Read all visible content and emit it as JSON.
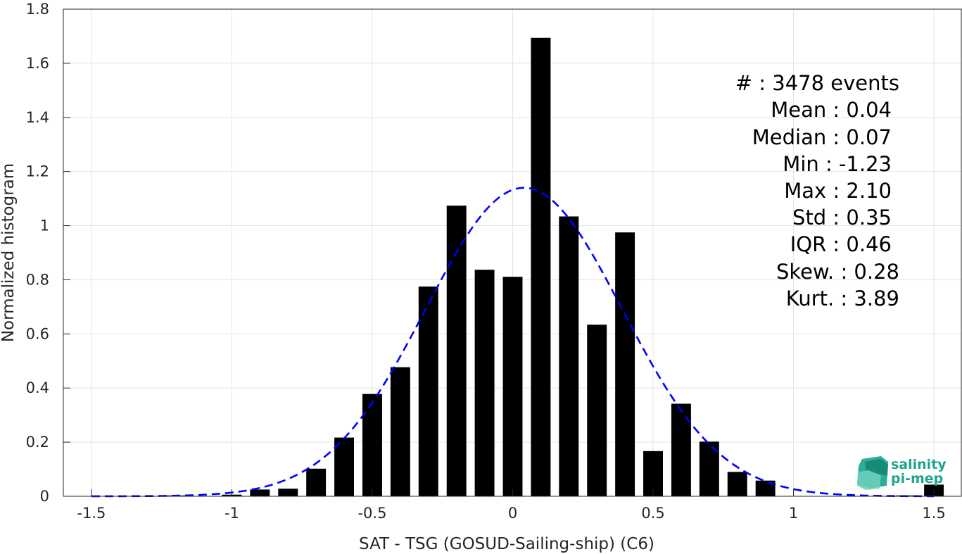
{
  "chart_data": {
    "type": "bar",
    "xlabel": "SAT - TSG (GOSUD-Sailing-ship) (C6)",
    "ylabel": "Normalized histogram",
    "xlim": [
      -1.6,
      1.6
    ],
    "ylim": [
      0,
      1.8
    ],
    "grid": true,
    "xticks": [
      {
        "value": -1.5,
        "label": "-1.5"
      },
      {
        "value": -1,
        "label": "-1"
      },
      {
        "value": -0.5,
        "label": "-0.5"
      },
      {
        "value": 0,
        "label": "0"
      },
      {
        "value": 0.5,
        "label": "0.5"
      },
      {
        "value": 1,
        "label": "1"
      },
      {
        "value": 1.5,
        "label": "1.5"
      }
    ],
    "yticks": [
      {
        "value": 0,
        "label": "0"
      },
      {
        "value": 0.2,
        "label": "0.2"
      },
      {
        "value": 0.4,
        "label": "0.4"
      },
      {
        "value": 0.6,
        "label": "0.6"
      },
      {
        "value": 0.8,
        "label": "0.8"
      },
      {
        "value": 1,
        "label": "1"
      },
      {
        "value": 1.2,
        "label": "1.2"
      },
      {
        "value": 1.4,
        "label": "1.4"
      },
      {
        "value": 1.6,
        "label": "1.6"
      },
      {
        "value": 1.8,
        "label": "1.8"
      }
    ],
    "bar_width": 0.07,
    "bar_color": "#000000",
    "bars": [
      {
        "x": -1.2,
        "y": 0.003
      },
      {
        "x": -1.0,
        "y": 0.006
      },
      {
        "x": -0.9,
        "y": 0.025
      },
      {
        "x": -0.8,
        "y": 0.028
      },
      {
        "x": -0.7,
        "y": 0.102
      },
      {
        "x": -0.6,
        "y": 0.217
      },
      {
        "x": -0.5,
        "y": 0.378
      },
      {
        "x": -0.4,
        "y": 0.477
      },
      {
        "x": -0.3,
        "y": 0.775
      },
      {
        "x": -0.2,
        "y": 1.074
      },
      {
        "x": -0.1,
        "y": 0.837
      },
      {
        "x": 0.0,
        "y": 0.811
      },
      {
        "x": 0.1,
        "y": 1.694
      },
      {
        "x": 0.2,
        "y": 1.034
      },
      {
        "x": 0.3,
        "y": 0.634
      },
      {
        "x": 0.4,
        "y": 0.975
      },
      {
        "x": 0.5,
        "y": 0.167
      },
      {
        "x": 0.6,
        "y": 0.342
      },
      {
        "x": 0.7,
        "y": 0.202
      },
      {
        "x": 0.8,
        "y": 0.09
      },
      {
        "x": 0.9,
        "y": 0.058
      },
      {
        "x": 1.4,
        "y": 0.003
      },
      {
        "x": 1.5,
        "y": 0.043
      }
    ],
    "fit_curve": {
      "type": "gaussian",
      "mean": 0.04,
      "std": 0.35,
      "x_range": [
        -1.5,
        1.5
      ],
      "color": "#0000ff",
      "style": "dashed"
    },
    "stats_lines": [
      "#  : 3478 events",
      "Mean : 0.04",
      "Median : 0.07",
      "Min : -1.23",
      "Max : 2.10",
      "Std : 0.35",
      "IQR : 0.46",
      "Skew. : 0.28",
      "Kurt. : 3.89"
    ]
  },
  "logo": {
    "line1": "salinity",
    "line2": "pi-mep",
    "color": "#1fa58a"
  }
}
